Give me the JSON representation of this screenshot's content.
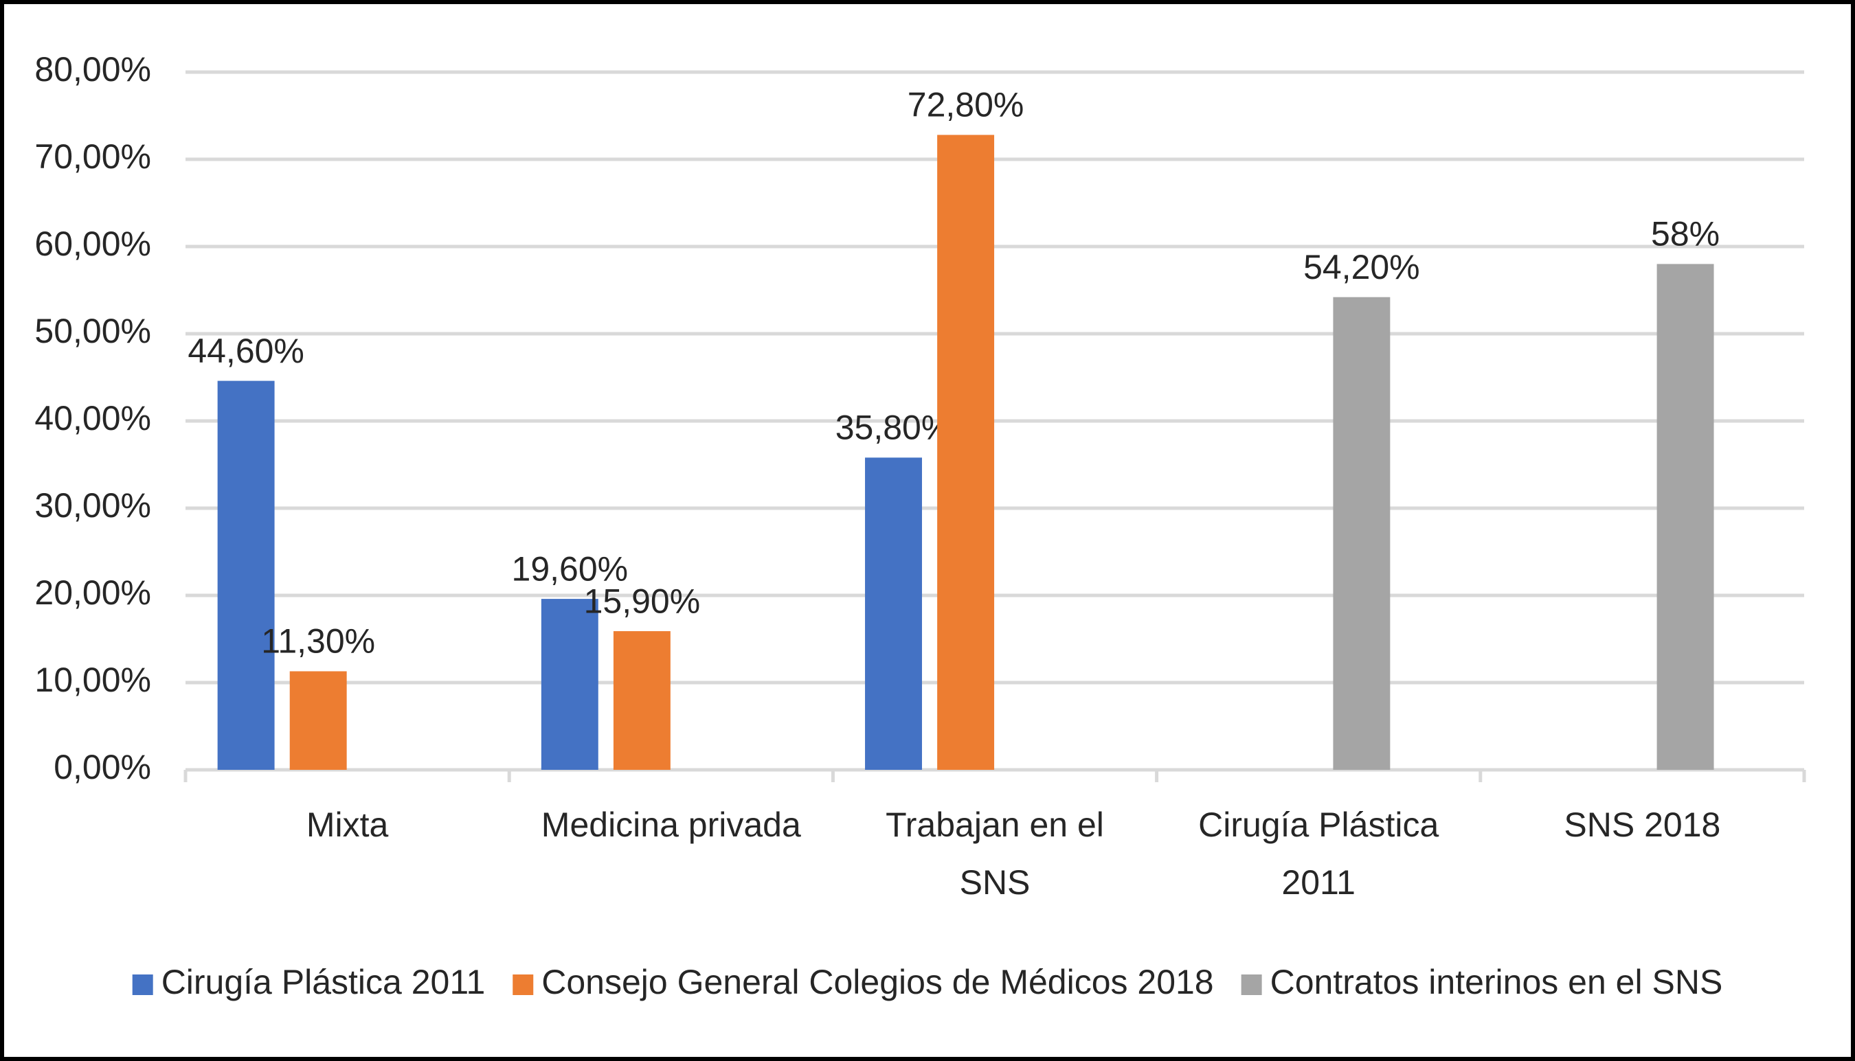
{
  "chart_data": {
    "type": "bar",
    "categories": [
      "Mixta",
      "Medicina privada",
      "Trabajan en el SNS",
      "Cirugía Plástica 2011",
      "SNS 2018"
    ],
    "series": [
      {
        "name": "Cirugía Plástica 2011",
        "color": "#4472c4",
        "values": [
          44.6,
          19.6,
          35.8,
          null,
          null
        ],
        "value_labels": [
          "44,60%",
          "19,60%",
          "35,80%",
          null,
          null
        ]
      },
      {
        "name": "Consejo General Colegios de Médicos 2018",
        "color": "#ed7d31",
        "values": [
          11.3,
          15.9,
          72.8,
          null,
          null
        ],
        "value_labels": [
          "11,30%",
          "15,90%",
          "72,80%",
          null,
          null
        ]
      },
      {
        "name": "Contratos interinos en el SNS",
        "color": "#a5a5a5",
        "values": [
          null,
          null,
          null,
          54.2,
          58
        ],
        "value_labels": [
          null,
          null,
          null,
          "54,20%",
          "58%"
        ]
      }
    ],
    "ylim": [
      0,
      80
    ],
    "yticks": [
      {
        "value": 0,
        "label": "0,00%"
      },
      {
        "value": 10,
        "label": "10,00%"
      },
      {
        "value": 20,
        "label": "20,00%"
      },
      {
        "value": 30,
        "label": "30,00%"
      },
      {
        "value": 40,
        "label": "40,00%"
      },
      {
        "value": 50,
        "label": "50,00%"
      },
      {
        "value": 60,
        "label": "60,00%"
      },
      {
        "value": 70,
        "label": "70,00%"
      },
      {
        "value": 80,
        "label": "80,00%"
      }
    ],
    "grid": true,
    "legend": "bottom"
  }
}
